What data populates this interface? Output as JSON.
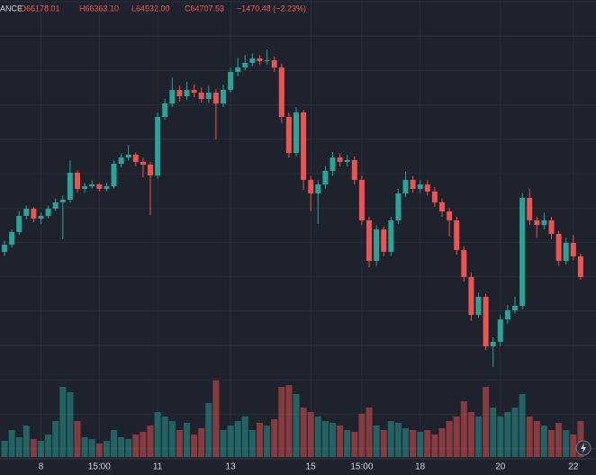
{
  "chart_data": {
    "type": "candlestick",
    "header_labels": [
      "ANCE",
      "O66178.01",
      "H66363.10",
      "L64532.00",
      "C64707.53",
      "−1470.48 (−2.23%)"
    ],
    "categories": [
      null,
      null,
      null,
      null,
      null,
      "8",
      null,
      null,
      null,
      null,
      null,
      null,
      null,
      "15:00",
      null,
      null,
      null,
      null,
      null,
      null,
      null,
      "11",
      null,
      null,
      null,
      null,
      null,
      null,
      null,
      null,
      null,
      "13",
      null,
      null,
      null,
      null,
      null,
      null,
      null,
      null,
      null,
      null,
      "15",
      null,
      null,
      null,
      null,
      null,
      null,
      "15:00",
      null,
      null,
      null,
      null,
      null,
      null,
      null,
      "18",
      null,
      null,
      null,
      null,
      null,
      null,
      null,
      null,
      null,
      null,
      "20",
      null,
      null,
      null,
      null,
      null,
      null,
      null,
      null,
      null,
      "22",
      null
    ],
    "candles": [
      [
        66500,
        67300,
        66200,
        67010
      ],
      [
        67010,
        68100,
        66800,
        67910
      ],
      [
        67910,
        69400,
        67700,
        69060
      ],
      [
        69060,
        69800,
        68800,
        69570
      ],
      [
        69570,
        69700,
        68600,
        68870
      ],
      [
        68870,
        69300,
        68500,
        69060
      ],
      [
        69060,
        69800,
        68900,
        69570
      ],
      [
        69570,
        70300,
        69400,
        70020
      ],
      [
        70020,
        70500,
        67400,
        70210
      ],
      [
        70210,
        73000,
        70000,
        72130
      ],
      [
        72130,
        72300,
        70700,
        70980
      ],
      [
        70980,
        71400,
        70700,
        71170
      ],
      [
        71170,
        71600,
        71000,
        71300
      ],
      [
        71300,
        71400,
        70800,
        70980
      ],
      [
        70980,
        71400,
        70800,
        71170
      ],
      [
        71170,
        73000,
        71000,
        72770
      ],
      [
        72770,
        73500,
        72500,
        73220
      ],
      [
        73220,
        74100,
        73000,
        73410
      ],
      [
        73410,
        73600,
        72600,
        72900
      ],
      [
        72900,
        73200,
        71800,
        72710
      ],
      [
        72710,
        72900,
        69100,
        71940
      ],
      [
        71940,
        76400,
        71700,
        76100
      ],
      [
        76100,
        77400,
        75900,
        77060
      ],
      [
        77060,
        78900,
        76800,
        78020
      ],
      [
        78020,
        78300,
        77200,
        77570
      ],
      [
        77570,
        78600,
        77300,
        78020
      ],
      [
        78020,
        78400,
        77500,
        77830
      ],
      [
        77830,
        78200,
        77100,
        77380
      ],
      [
        77380,
        78300,
        77100,
        77830
      ],
      [
        77830,
        78100,
        74500,
        77060
      ],
      [
        77060,
        78400,
        76800,
        78020
      ],
      [
        78020,
        79600,
        77800,
        79300
      ],
      [
        79300,
        80300,
        79000,
        79620
      ],
      [
        79620,
        80500,
        79400,
        79940
      ],
      [
        79940,
        80600,
        79700,
        80260
      ],
      [
        80260,
        80500,
        79800,
        80070
      ],
      [
        80070,
        80900,
        79800,
        80130
      ],
      [
        80130,
        80400,
        79300,
        79620
      ],
      [
        79620,
        79900,
        75700,
        76100
      ],
      [
        76100,
        76400,
        73200,
        73540
      ],
      [
        73540,
        76800,
        73300,
        76420
      ],
      [
        76420,
        76600,
        70900,
        71620
      ],
      [
        71620,
        71900,
        69400,
        70660
      ],
      [
        70660,
        71600,
        68500,
        71300
      ],
      [
        71300,
        72600,
        71000,
        72260
      ],
      [
        72260,
        73600,
        71900,
        73220
      ],
      [
        73220,
        73500,
        72600,
        72900
      ],
      [
        72900,
        73400,
        72600,
        73030
      ],
      [
        73030,
        73300,
        71300,
        71620
      ],
      [
        71620,
        71900,
        68400,
        68740
      ],
      [
        68740,
        69000,
        65400,
        65860
      ],
      [
        65860,
        68400,
        65500,
        68100
      ],
      [
        68100,
        68300,
        66200,
        66500
      ],
      [
        66500,
        69000,
        66200,
        68740
      ],
      [
        68740,
        71000,
        68500,
        70660
      ],
      [
        70660,
        72200,
        70400,
        71620
      ],
      [
        71620,
        71900,
        70700,
        70980
      ],
      [
        70980,
        71600,
        70700,
        71300
      ],
      [
        71300,
        71600,
        70500,
        70790
      ],
      [
        70790,
        71100,
        69700,
        70020
      ],
      [
        70020,
        70300,
        69000,
        69380
      ],
      [
        69380,
        69600,
        67600,
        68740
      ],
      [
        68740,
        69000,
        66300,
        66630
      ],
      [
        66630,
        66900,
        64400,
        64710
      ],
      [
        64710,
        65000,
        61600,
        62020
      ],
      [
        62020,
        63600,
        61800,
        63300
      ],
      [
        63300,
        63500,
        59500,
        59780
      ],
      [
        59780,
        60400,
        58300,
        60100
      ],
      [
        60100,
        62000,
        59800,
        61700
      ],
      [
        61700,
        62700,
        61400,
        62340
      ],
      [
        62340,
        63300,
        62100,
        62660
      ],
      [
        62660,
        70700,
        62400,
        70340
      ],
      [
        70340,
        71000,
        68400,
        68740
      ],
      [
        68740,
        69000,
        67500,
        68420
      ],
      [
        68420,
        69300,
        68100,
        68740
      ],
      [
        68740,
        69000,
        67400,
        67780
      ],
      [
        67780,
        68000,
        65500,
        65860
      ],
      [
        65860,
        67500,
        65600,
        67140
      ],
      [
        67140,
        67700,
        65900,
        66180
      ],
      [
        66178.01,
        66363.1,
        64532,
        64707.53
      ]
    ],
    "volume": [
      18,
      30,
      22,
      35,
      20,
      18,
      25,
      40,
      78,
      72,
      40,
      22,
      20,
      15,
      18,
      30,
      22,
      20,
      25,
      28,
      35,
      50,
      45,
      40,
      30,
      38,
      25,
      32,
      60,
      85,
      30,
      35,
      40,
      45,
      30,
      38,
      35,
      42,
      78,
      80,
      70,
      55,
      50,
      45,
      40,
      38,
      35,
      30,
      28,
      48,
      55,
      35,
      30,
      40,
      38,
      32,
      30,
      28,
      30,
      25,
      32,
      40,
      45,
      62,
      50,
      45,
      78,
      55,
      45,
      50,
      55,
      70,
      45,
      40,
      35,
      30,
      38,
      30,
      25,
      40
    ],
    "ylim": [
      56258,
      84418
    ],
    "volume_lim": [
      0,
      100
    ],
    "up_color": "#26a69a",
    "down_color": "#ef5350",
    "grid": true
  }
}
